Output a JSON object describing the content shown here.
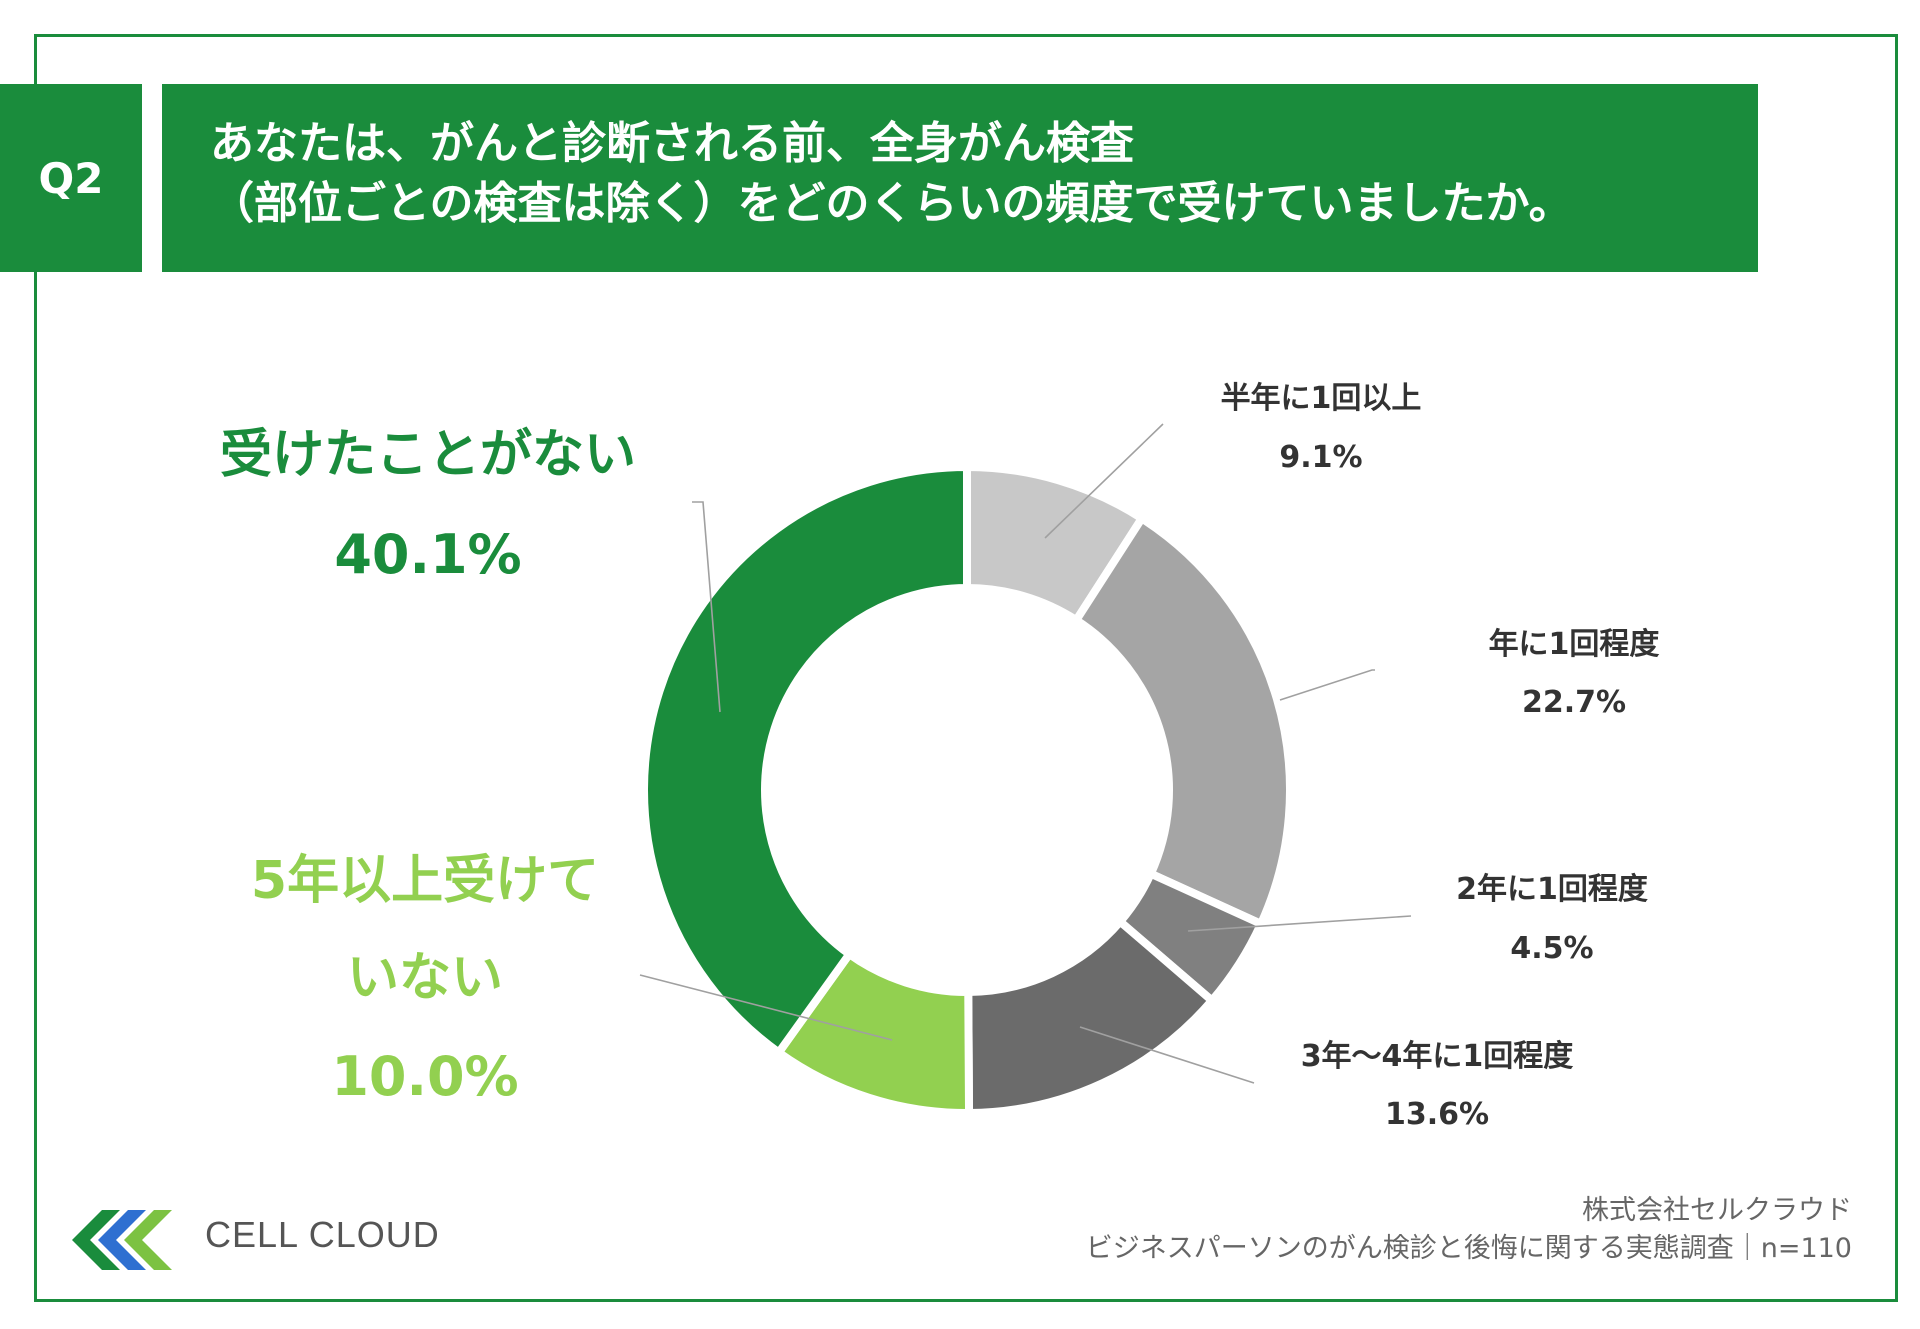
{
  "question": {
    "label": "Q2",
    "title_line1": "あなたは、がんと診断される前、全身がん検査",
    "title_line2": "（部位ごとの検査は除く）をどのくらいの頻度で受けていましたか。"
  },
  "colors": {
    "brand_green": "#1a8c3c",
    "light_green": "#92d050",
    "gray1": "#c8c8c8",
    "gray2": "#a5a5a5",
    "gray3": "#808080",
    "gray4": "#6b6b6b"
  },
  "chart_data": {
    "type": "pie",
    "variant": "donut",
    "title": "あなたは、がんと診断される前、全身がん検査（部位ごとの検査は除く）をどのくらいの頻度で受けていましたか。",
    "slices": [
      {
        "label": "半年に1回以上",
        "value": 9.1,
        "value_label": "9.1%",
        "color": "#c8c8c8"
      },
      {
        "label": "年に1回程度",
        "value": 22.7,
        "value_label": "22.7%",
        "color": "#a5a5a5"
      },
      {
        "label": "2年に1回程度",
        "value": 4.5,
        "value_label": "4.5%",
        "color": "#808080"
      },
      {
        "label": "3年〜4年に1回程度",
        "value": 13.6,
        "value_label": "13.6%",
        "color": "#6b6b6b"
      },
      {
        "label": "5年以上受けていない",
        "label_line1": "5年以上受けて",
        "label_line2": "いない",
        "value": 10.0,
        "value_label": "10.0%",
        "color": "#92d050"
      },
      {
        "label": "受けたことがない",
        "value": 40.1,
        "value_label": "40.1%",
        "color": "#1a8c3c"
      }
    ]
  },
  "footer": {
    "brand": "CELL CLOUD",
    "company": "株式会社セルクラウド",
    "survey": "ビジネスパーソンのがん検診と後悔に関する実態調査｜n=110"
  }
}
